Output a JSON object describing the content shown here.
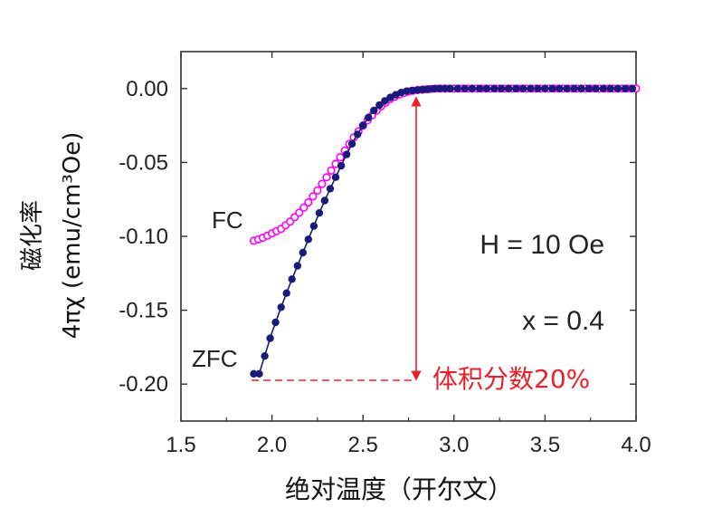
{
  "chart_data": {
    "type": "scatter",
    "xlabel": "绝对温度（开尔文）",
    "ylabel_top": "磁化率",
    "ylabel": "4πχ (emu/cm³Oe)",
    "xlim": [
      1.5,
      4.0
    ],
    "ylim": [
      -0.225,
      0.025
    ],
    "x_ticks": [
      "1.5",
      "2.0",
      "2.5",
      "3.0",
      "3.5",
      "4.0"
    ],
    "y_ticks": [
      "0.00",
      "-0.05",
      "-0.10",
      "-0.15",
      "-0.20"
    ],
    "grid": false,
    "annotations": {
      "field": "H = 10 Oe",
      "doping": "x = 0.4",
      "fc_label": "FC",
      "zfc_label": "ZFC",
      "volume_fraction": "体积分数20%"
    },
    "colors": {
      "fc": "#ff00ff",
      "zfc": "#1a1a7a",
      "arrow": "#e8202a"
    },
    "series": [
      {
        "name": "FC",
        "x": [
          1.9,
          1.95,
          2.0,
          2.05,
          2.1,
          2.15,
          2.2,
          2.25,
          2.3,
          2.35,
          2.4,
          2.45,
          2.5,
          2.55,
          2.6,
          2.65,
          2.7,
          2.75,
          2.8,
          2.85,
          2.9,
          2.95,
          3.0,
          3.1,
          3.2,
          3.3,
          3.4,
          3.5,
          3.6,
          3.7,
          3.8,
          3.9,
          4.0
        ],
        "values": [
          -0.103,
          -0.101,
          -0.098,
          -0.095,
          -0.09,
          -0.084,
          -0.077,
          -0.069,
          -0.06,
          -0.051,
          -0.042,
          -0.033,
          -0.025,
          -0.018,
          -0.012,
          -0.007,
          -0.004,
          -0.002,
          -0.001,
          -0.0005,
          0.0,
          0.0,
          0.0,
          0.0,
          0.0,
          0.0,
          0.0,
          0.0,
          0.0,
          0.0,
          0.0,
          0.0,
          0.0
        ]
      },
      {
        "name": "ZFC",
        "x": [
          1.9,
          1.93,
          1.95,
          2.0,
          2.05,
          2.1,
          2.15,
          2.2,
          2.25,
          2.3,
          2.35,
          2.4,
          2.45,
          2.5,
          2.55,
          2.6,
          2.65,
          2.7,
          2.75,
          2.8,
          2.85,
          2.9,
          2.95,
          3.0,
          3.1,
          3.2,
          3.3,
          3.4,
          3.5,
          3.6,
          3.7,
          3.8,
          3.9,
          4.0
        ],
        "values": [
          -0.193,
          -0.193,
          -0.185,
          -0.165,
          -0.148,
          -0.132,
          -0.117,
          -0.102,
          -0.087,
          -0.073,
          -0.06,
          -0.047,
          -0.035,
          -0.025,
          -0.016,
          -0.01,
          -0.006,
          -0.003,
          -0.0015,
          -0.001,
          -0.0005,
          0.0,
          0.0,
          0.0,
          0.0,
          0.0,
          0.0,
          0.0,
          0.0,
          0.0,
          0.0,
          0.0,
          0.0,
          0.0
        ]
      }
    ]
  }
}
